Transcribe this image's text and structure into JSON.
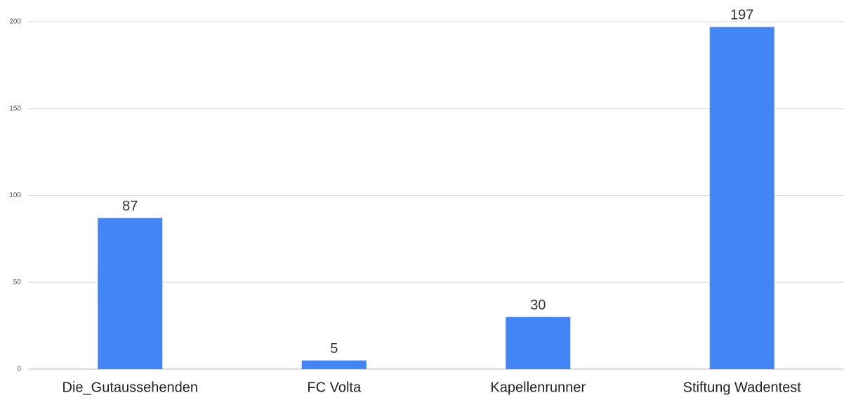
{
  "chart_data": {
    "type": "bar",
    "categories": [
      "Die_Gutaussehenden",
      "FC Volta",
      "Kapellenrunner",
      "Stiftung Wadentest"
    ],
    "values": [
      87,
      5,
      30,
      197
    ],
    "color": "#4285f4",
    "ylim": [
      0,
      200
    ],
    "yticks": [
      0,
      50,
      100,
      150,
      200
    ],
    "grid": true,
    "data_labels": true
  }
}
